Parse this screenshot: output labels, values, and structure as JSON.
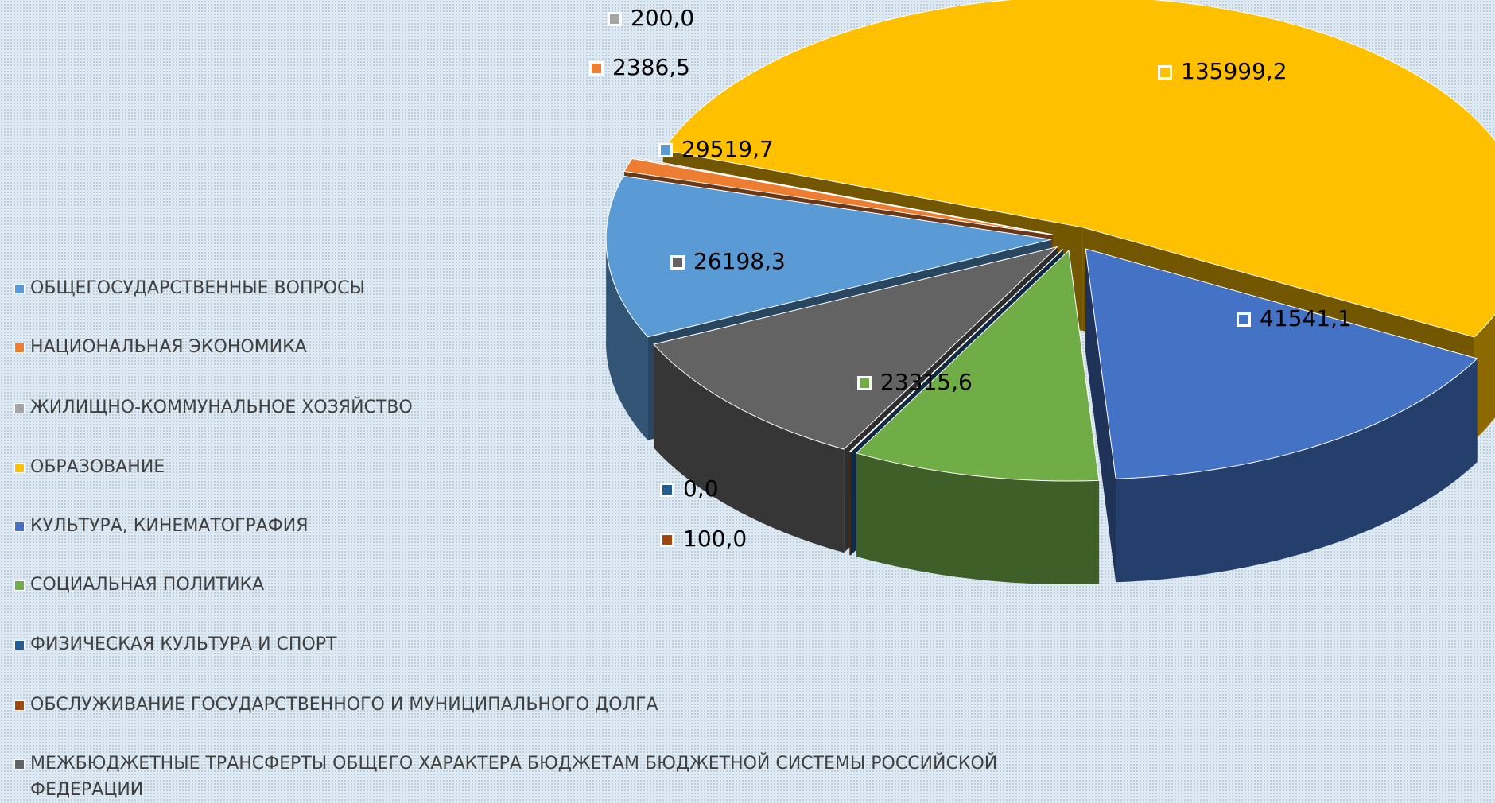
{
  "chart_data": {
    "type": "pie3d",
    "categories": [
      "ОБЩЕГОСУДАРСТВЕННЫЕ ВОПРОСЫ",
      "НАЦИОНАЛЬНАЯ ЭКОНОМИКА",
      "ЖИЛИЩНО-КОММУНАЛЬНОЕ ХОЗЯЙСТВО",
      "ОБРАЗОВАНИЕ",
      "КУЛЬТУРА, КИНЕМАТОГРАФИЯ",
      "СОЦИАЛЬНАЯ ПОЛИТИКА",
      "ФИЗИЧЕСКАЯ КУЛЬТУРА И СПОРТ",
      "ОБСЛУЖИВАНИЕ ГОСУДАРСТВЕННОГО И МУНИЦИПАЛЬНОГО ДОЛГА",
      "МЕЖБЮДЖЕТНЫЕ ТРАНСФЕРТЫ ОБЩЕГО ХАРАКТЕРА БЮДЖЕТАМ БЮДЖЕТНОЙ СИСТЕМЫ РОССИЙСКОЙ ФЕДЕРАЦИИ"
    ],
    "values": [
      29519.7,
      2386.5,
      200.0,
      135999.2,
      41541.1,
      23315.6,
      0.0,
      100.0,
      26198.3
    ],
    "value_labels": [
      "29519,7",
      "2386,5",
      "200,0",
      "135999,2",
      "41541,1",
      "23315,6",
      "0,0",
      "100,0",
      "26198,3"
    ],
    "colors": [
      "#5b9bd5",
      "#ed7d31",
      "#a5a5a5",
      "#ffc000",
      "#4472c4",
      "#70ad47",
      "#255e91",
      "#9e480e",
      "#636363"
    ],
    "legend": "left"
  }
}
